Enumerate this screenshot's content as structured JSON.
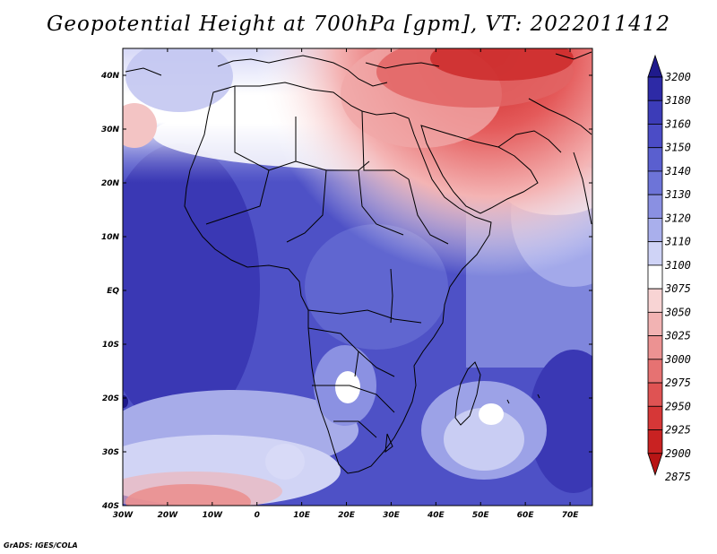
{
  "title": "Geopotential Height at 700hPa [gpm], VT: 2022011412",
  "credit": "GrADS: IGES/COLA",
  "map": {
    "lon_range": [
      -30,
      75
    ],
    "lat_range": [
      -40,
      45
    ],
    "x_ticks": [
      "30W",
      "20W",
      "10W",
      "0",
      "10E",
      "20E",
      "30E",
      "40E",
      "50E",
      "60E",
      "70E"
    ],
    "y_ticks": [
      "40N",
      "30N",
      "20N",
      "10N",
      "EQ",
      "10S",
      "20S",
      "30S",
      "40S"
    ]
  },
  "colorbar": {
    "levels": [
      "3200",
      "3180",
      "3160",
      "3150",
      "3140",
      "3130",
      "3120",
      "3110",
      "3100",
      "3075",
      "3050",
      "3025",
      "3000",
      "2975",
      "2950",
      "2925",
      "2900",
      "2875"
    ],
    "colors": [
      "#1f1a8c",
      "#2d2aa6",
      "#3c3cb8",
      "#4b4cc6",
      "#5a5fcf",
      "#6d74d8",
      "#8a90e2",
      "#a9afec",
      "#cfd3f6",
      "#ffffff",
      "#f8d4d4",
      "#f2b3b3",
      "#ec9292",
      "#e67272",
      "#df5353",
      "#d63737",
      "#c92222",
      "#b81515"
    ]
  }
}
